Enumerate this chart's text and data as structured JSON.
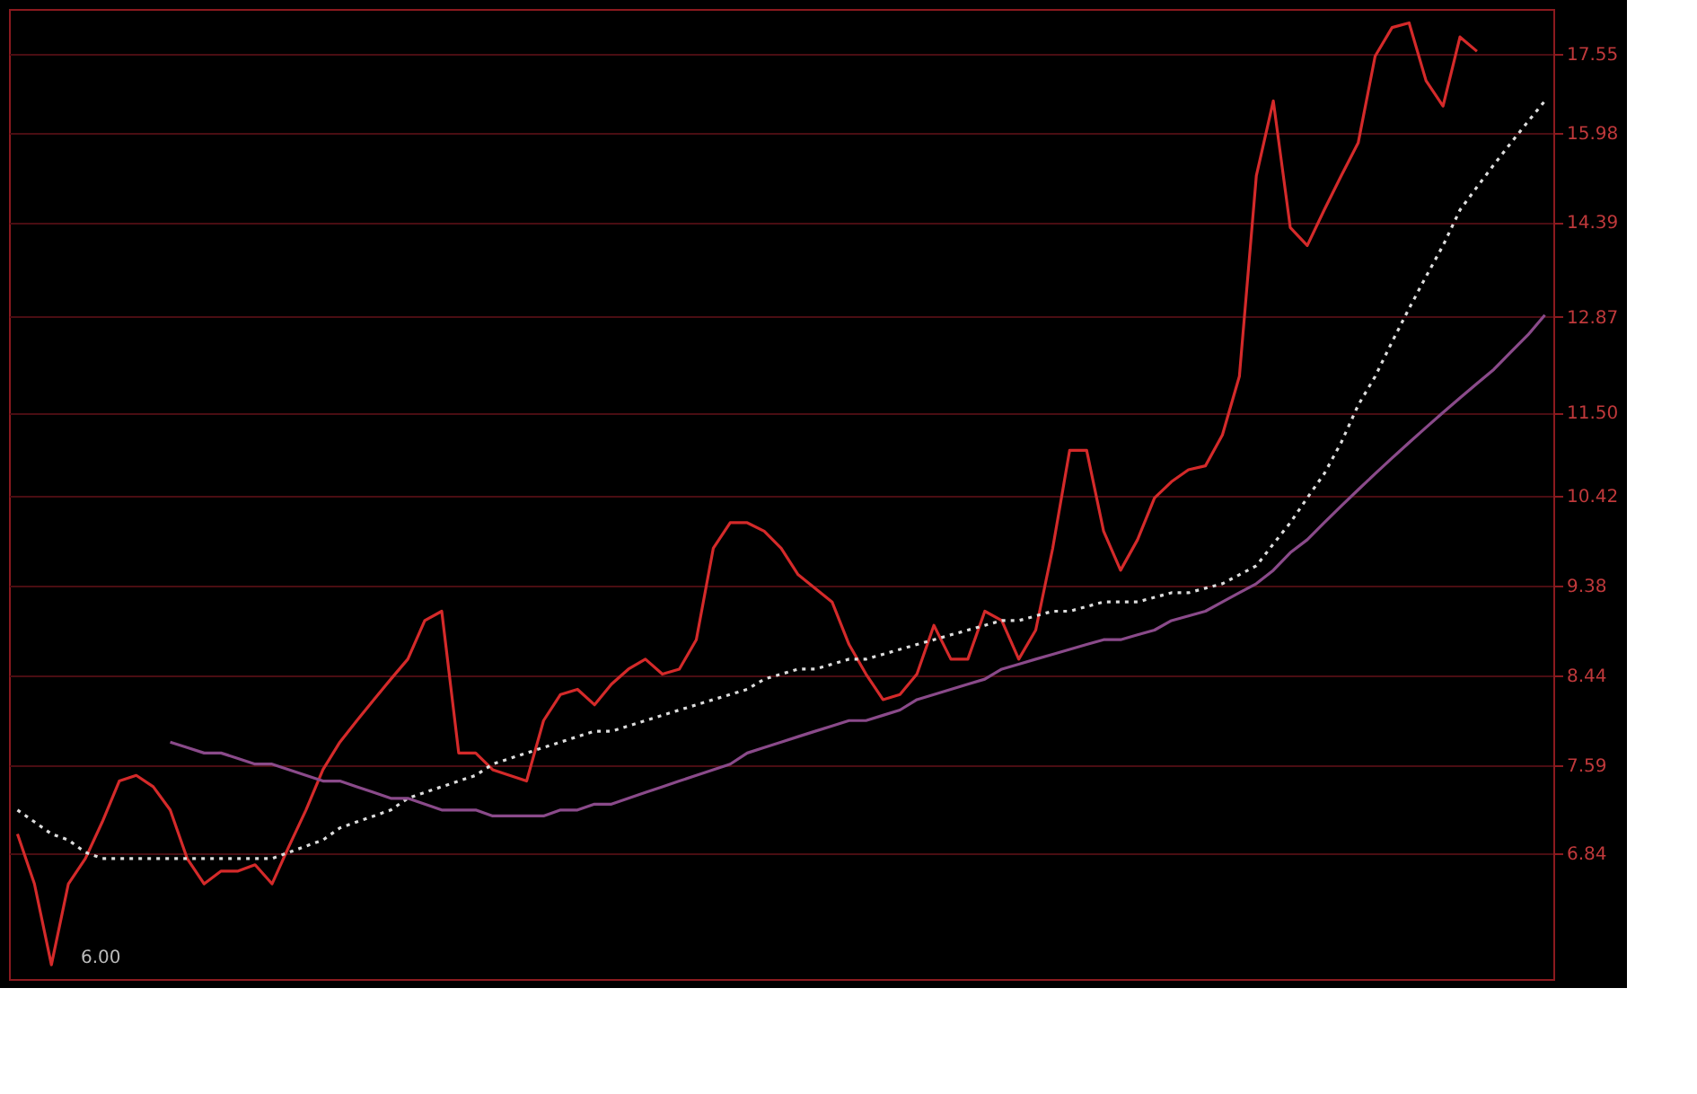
{
  "chart_data": {
    "type": "line",
    "log": "y",
    "grid": "y",
    "tick_labels": "y",
    "categories": [
      null,
      null,
      null,
      null,
      null,
      null,
      null,
      null,
      null,
      null,
      null,
      null,
      null,
      null,
      null,
      null,
      null,
      null,
      null,
      null,
      null,
      null,
      null,
      null,
      null,
      null,
      null,
      null,
      null,
      null,
      null,
      null,
      null,
      null,
      null,
      null,
      null,
      null,
      null,
      null,
      null,
      null,
      null,
      null,
      null,
      null,
      null,
      null,
      null,
      null,
      null,
      null,
      null,
      null,
      null,
      null,
      null,
      null,
      null,
      null,
      null,
      null,
      null,
      null,
      null,
      null,
      null,
      null,
      null,
      null,
      null,
      null,
      null,
      null,
      null,
      null,
      null,
      null,
      null,
      null,
      null,
      null,
      null,
      null,
      null,
      null,
      null,
      null,
      null,
      null,
      null
    ],
    "ylim": [
      5.9,
      18.5
    ],
    "yticks": [
      6.84,
      7.59,
      8.44,
      9.38,
      10.42,
      {
        "value": 11.5,
        "label": "11.50"
      },
      12.87,
      14.39,
      15.98,
      17.55
    ],
    "annotations": [
      "6.00"
    ],
    "series": [
      {
        "color": "#d42a2a",
        "line_style": "solid",
        "values": [
          7.0,
          6.6,
          6.0,
          6.6,
          6.8,
          7.1,
          7.45,
          7.5,
          7.4,
          7.2,
          6.8,
          6.6,
          6.7,
          6.7,
          6.75,
          6.6,
          6.9,
          7.2,
          7.55,
          7.8,
          8.0,
          8.2,
          8.4,
          8.6,
          9.0,
          9.1,
          7.7,
          7.7,
          7.55,
          7.5,
          7.45,
          8.0,
          8.25,
          8.3,
          8.15,
          8.35,
          8.5,
          8.6,
          8.45,
          8.5,
          8.8,
          9.8,
          10.1,
          10.1,
          10.0,
          9.8,
          9.5,
          9.35,
          9.2,
          8.75,
          8.45,
          8.2,
          8.25,
          8.45,
          8.95,
          8.6,
          8.6,
          9.1,
          9.0,
          8.6,
          8.9,
          9.8,
          11.0,
          11.0,
          10.0,
          9.55,
          9.9,
          10.4,
          10.6,
          10.75,
          10.8,
          11.2,
          12.0,
          15.2,
          16.6,
          14.3,
          14.0,
          14.6,
          15.2,
          15.8,
          17.5,
          18.1,
          18.2,
          17.0,
          16.5,
          17.9,
          17.6,
          null,
          null,
          null,
          null
        ]
      },
      {
        "color": "#dddddd",
        "line_style": "dotted",
        "values": [
          7.2,
          7.1,
          7.0,
          6.95,
          6.85,
          6.8,
          6.8,
          6.8,
          6.8,
          6.8,
          6.8,
          6.8,
          6.8,
          6.8,
          6.8,
          6.8,
          6.85,
          6.9,
          6.95,
          7.05,
          7.1,
          7.15,
          7.2,
          7.3,
          7.35,
          7.4,
          7.45,
          7.5,
          7.6,
          7.65,
          7.7,
          7.75,
          7.8,
          7.85,
          7.9,
          7.9,
          7.95,
          8.0,
          8.05,
          8.1,
          8.15,
          8.2,
          8.25,
          8.3,
          8.4,
          8.45,
          8.5,
          8.5,
          8.55,
          8.6,
          8.6,
          8.65,
          8.7,
          8.75,
          8.8,
          8.85,
          8.9,
          8.95,
          9.0,
          9.0,
          9.05,
          9.1,
          9.1,
          9.15,
          9.2,
          9.2,
          9.2,
          9.25,
          9.3,
          9.3,
          9.35,
          9.4,
          9.5,
          9.6,
          9.85,
          10.1,
          10.4,
          10.7,
          11.1,
          11.6,
          12.0,
          12.5,
          13.0,
          13.5,
          14.0,
          14.6,
          15.0,
          15.4,
          15.8,
          16.2,
          16.6
        ]
      },
      {
        "color": "#8a4a8a",
        "line_style": "solid",
        "values": [
          null,
          null,
          null,
          null,
          null,
          null,
          null,
          null,
          null,
          7.8,
          7.75,
          7.7,
          7.7,
          7.65,
          7.6,
          7.6,
          7.55,
          7.5,
          7.45,
          7.45,
          7.4,
          7.35,
          7.3,
          7.3,
          7.25,
          7.2,
          7.2,
          7.2,
          7.15,
          7.15,
          7.15,
          7.15,
          7.2,
          7.2,
          7.25,
          7.25,
          7.3,
          7.35,
          7.4,
          7.45,
          7.5,
          7.55,
          7.6,
          7.7,
          7.75,
          7.8,
          7.85,
          7.9,
          7.95,
          8.0,
          8.0,
          8.05,
          8.1,
          8.2,
          8.25,
          8.3,
          8.35,
          8.4,
          8.5,
          8.55,
          8.6,
          8.65,
          8.7,
          8.75,
          8.8,
          8.8,
          8.85,
          8.9,
          9.0,
          9.05,
          9.1,
          9.2,
          9.3,
          9.4,
          9.55,
          9.75,
          9.9,
          10.1,
          10.3,
          10.5,
          10.7,
          10.9,
          11.1,
          11.3,
          11.5,
          11.7,
          11.9,
          12.1,
          12.35,
          12.6,
          12.9
        ]
      }
    ]
  }
}
